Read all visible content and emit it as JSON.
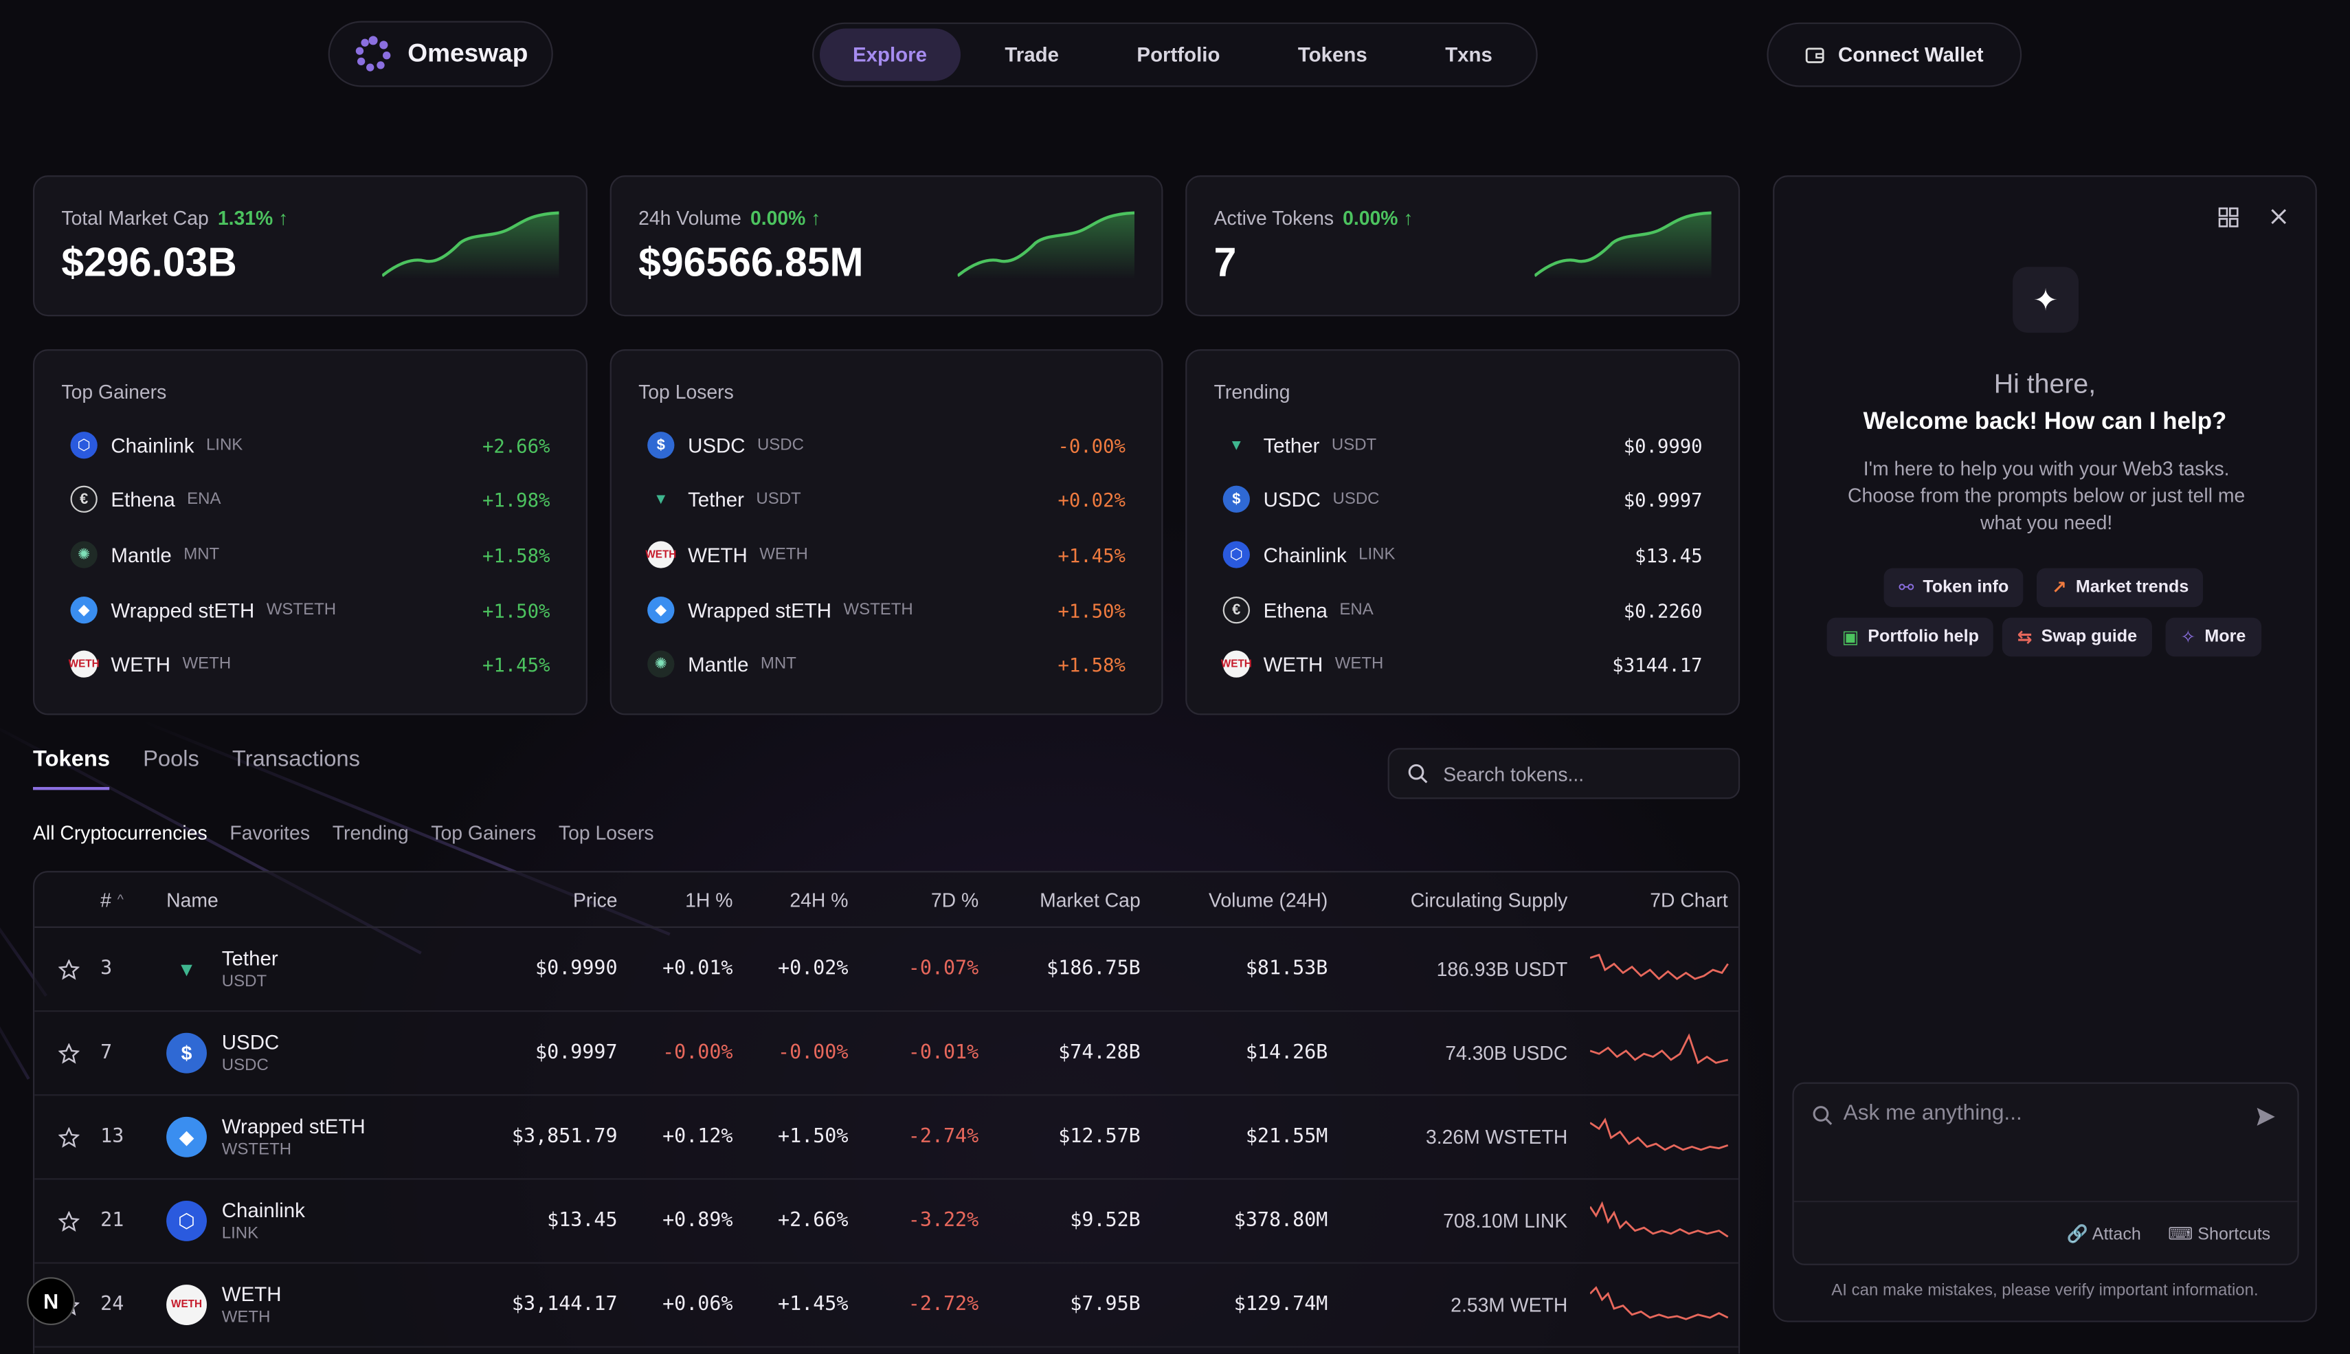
{
  "header": {
    "brand": "Omeswap",
    "nav": [
      "Explore",
      "Trade",
      "Portfolio",
      "Tokens",
      "Txns"
    ],
    "wallet_label": "Connect Wallet"
  },
  "stats": [
    {
      "label": "Total Market Cap",
      "pct": "1.31% ↑",
      "value": "$296.03B"
    },
    {
      "label": "24h Volume",
      "pct": "0.00% ↑",
      "value": "$96566.85M"
    },
    {
      "label": "Active Tokens",
      "pct": "0.00% ↑",
      "value": "7"
    }
  ],
  "top_gainers": {
    "title": "Top Gainers",
    "rows": [
      {
        "name": "Chainlink",
        "sym": "LINK",
        "val": "+2.66%",
        "icon": "chainlink-icon"
      },
      {
        "name": "Ethena",
        "sym": "ENA",
        "val": "+1.98%",
        "icon": "ethena-icon"
      },
      {
        "name": "Mantle",
        "sym": "MNT",
        "val": "+1.58%",
        "icon": "mantle-icon"
      },
      {
        "name": "Wrapped stETH",
        "sym": "WSTETH",
        "val": "+1.50%",
        "icon": "wsteth-icon"
      },
      {
        "name": "WETH",
        "sym": "WETH",
        "val": "+1.45%",
        "icon": "weth-icon"
      }
    ]
  },
  "top_losers": {
    "title": "Top Losers",
    "rows": [
      {
        "name": "USDC",
        "sym": "USDC",
        "val": "-0.00%",
        "icon": "usdc-icon"
      },
      {
        "name": "Tether",
        "sym": "USDT",
        "val": "+0.02%",
        "icon": "tether-icon"
      },
      {
        "name": "WETH",
        "sym": "WETH",
        "val": "+1.45%",
        "icon": "weth-icon"
      },
      {
        "name": "Wrapped stETH",
        "sym": "WSTETH",
        "val": "+1.50%",
        "icon": "wsteth-icon"
      },
      {
        "name": "Mantle",
        "sym": "MNT",
        "val": "+1.58%",
        "icon": "mantle-icon"
      }
    ]
  },
  "trending": {
    "title": "Trending",
    "rows": [
      {
        "name": "Tether",
        "sym": "USDT",
        "val": "$0.9990",
        "icon": "tether-icon"
      },
      {
        "name": "USDC",
        "sym": "USDC",
        "val": "$0.9997",
        "icon": "usdc-icon"
      },
      {
        "name": "Chainlink",
        "sym": "LINK",
        "val": "$13.45",
        "icon": "chainlink-icon"
      },
      {
        "name": "Ethena",
        "sym": "ENA",
        "val": "$0.2260",
        "icon": "ethena-icon"
      },
      {
        "name": "WETH",
        "sym": "WETH",
        "val": "$3144.17",
        "icon": "weth-icon"
      }
    ]
  },
  "main_tabs": [
    "Tokens",
    "Pools",
    "Transactions"
  ],
  "sub_tabs": [
    "All Cryptocurrencies",
    "Favorites",
    "Trending",
    "Top Gainers",
    "Top Losers"
  ],
  "search": {
    "placeholder": "Search tokens..."
  },
  "table": {
    "headers": [
      "#",
      "Name",
      "Price",
      "1H %",
      "24H %",
      "7D %",
      "Market Cap",
      "Volume (24H)",
      "Circulating Supply",
      "7D Chart"
    ],
    "rows": [
      {
        "rank": "3",
        "name": "Tether",
        "sym": "USDT",
        "price": "$0.9990",
        "h1": "+0.01%",
        "h24": "+0.02%",
        "d7": "-0.07%",
        "mcap": "$186.75B",
        "vol": "$81.53B",
        "supply": "186.93B USDT",
        "icon": "tether-icon"
      },
      {
        "rank": "7",
        "name": "USDC",
        "sym": "USDC",
        "price": "$0.9997",
        "h1": "-0.00%",
        "h24": "-0.00%",
        "d7": "-0.01%",
        "mcap": "$74.28B",
        "vol": "$14.26B",
        "supply": "74.30B USDC",
        "icon": "usdc-icon"
      },
      {
        "rank": "13",
        "name": "Wrapped stETH",
        "sym": "WSTETH",
        "price": "$3,851.79",
        "h1": "+0.12%",
        "h24": "+1.50%",
        "d7": "-2.74%",
        "mcap": "$12.57B",
        "vol": "$21.55M",
        "supply": "3.26M WSTETH",
        "icon": "wsteth-icon"
      },
      {
        "rank": "21",
        "name": "Chainlink",
        "sym": "LINK",
        "price": "$13.45",
        "h1": "+0.89%",
        "h24": "+2.66%",
        "d7": "-3.22%",
        "mcap": "$9.52B",
        "vol": "$378.80M",
        "supply": "708.10M LINK",
        "icon": "chainlink-icon"
      },
      {
        "rank": "24",
        "name": "WETH",
        "sym": "WETH",
        "price": "$3,144.17",
        "h1": "+0.06%",
        "h24": "+1.45%",
        "d7": "-2.72%",
        "mcap": "$7.95B",
        "vol": "$129.74M",
        "supply": "2.53M WETH",
        "icon": "weth-icon"
      }
    ]
  },
  "chat": {
    "hi": "Hi there,",
    "welcome": "Welcome back! How can I help?",
    "desc": "I'm here to help you with your Web3 tasks. Choose from the prompts below or just tell me what you need!",
    "chips": [
      "Token info",
      "Market trends",
      "Portfolio help",
      "Swap guide",
      "More"
    ],
    "placeholder": "Ask me anything...",
    "attach": "Attach",
    "shortcuts": "Shortcuts",
    "disclaimer": "AI can make mistakes, please verify important information."
  },
  "badge": "N",
  "colors": {
    "accent": "#8b6fe0",
    "positive": "#4cc35f",
    "negative": "#f07b3f",
    "down": "#e8685c"
  }
}
